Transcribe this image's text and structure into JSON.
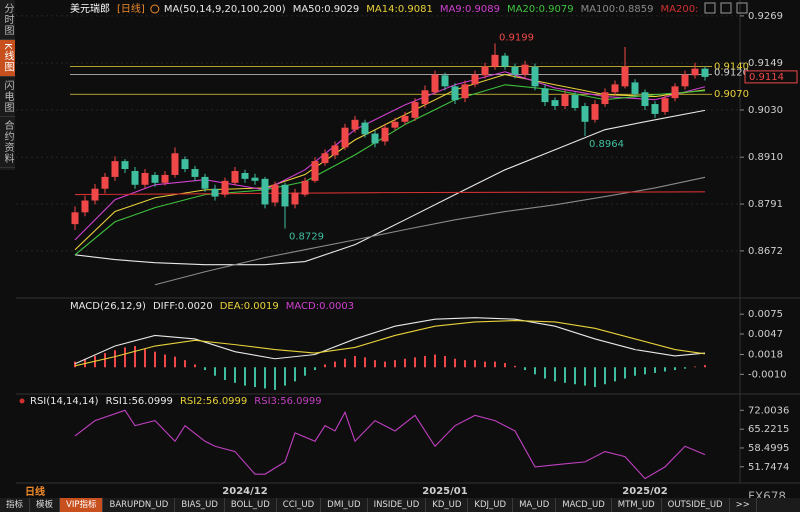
{
  "ui": {
    "sidebar_tabs": [
      "分时图",
      "K线图",
      "闪电图",
      "合约资料"
    ],
    "sidebar_active": 1,
    "period_label": "日线",
    "bottom_tabs": [
      "指标",
      "模板",
      "VIP指标",
      "BARUPDN_UD",
      "BIAS_UD",
      "BOLL_UD",
      "CCI_UD",
      "DMI_UD",
      "INSIDE_UD",
      "KD_UD",
      "KDJ_UD",
      "MA_UD",
      "MACD_UD",
      "MTM_UD",
      "OUTSIDE_UD",
      ">>"
    ],
    "bottom_active": 2,
    "watermark": "FX678"
  },
  "chart_data": [
    {
      "type": "candlestick",
      "title": "美元瑞郎",
      "period": "[日线]",
      "indicator": "MA(50,14,9,20,100,200)",
      "categories": [
        null,
        null,
        null,
        null,
        null,
        null,
        null,
        null,
        null,
        null,
        null,
        null,
        null,
        null,
        null,
        null,
        null,
        "2024/12",
        null,
        null,
        null,
        null,
        null,
        null,
        null,
        null,
        null,
        null,
        null,
        null,
        null,
        null,
        null,
        null,
        null,
        null,
        null,
        "2025/01",
        null,
        null,
        null,
        null,
        null,
        null,
        null,
        null,
        null,
        null,
        null,
        null,
        null,
        null,
        null,
        null,
        null,
        null,
        null,
        "2025/02",
        null,
        null,
        null,
        null,
        null,
        null
      ],
      "open": [
        0.874,
        0.877,
        0.88,
        0.883,
        0.886,
        0.89,
        0.8875,
        0.884,
        0.8865,
        0.8845,
        0.8865,
        0.8905,
        0.888,
        0.886,
        0.883,
        0.8815,
        0.8845,
        0.887,
        0.8858,
        0.8855,
        0.8795,
        0.884,
        0.879,
        0.8815,
        0.885,
        0.8895,
        0.8915,
        0.8935,
        0.898,
        0.8998,
        0.897,
        0.895,
        0.8985,
        0.9,
        0.901,
        0.9045,
        0.9075,
        0.9118,
        0.909,
        0.906,
        0.9095,
        0.9118,
        0.914,
        0.9168,
        0.914,
        0.912,
        0.914,
        0.9085,
        0.9055,
        0.904,
        0.9068,
        0.904,
        0.9005,
        0.9045,
        0.9075,
        0.909,
        0.91,
        0.9075,
        0.9045,
        0.9025,
        0.906,
        0.909,
        0.9118,
        0.9135
      ],
      "close": [
        0.877,
        0.88,
        0.883,
        0.886,
        0.89,
        0.888,
        0.884,
        0.887,
        0.8845,
        0.8865,
        0.892,
        0.888,
        0.886,
        0.883,
        0.881,
        0.885,
        0.8875,
        0.8855,
        0.885,
        0.879,
        0.884,
        0.8785,
        0.882,
        0.885,
        0.89,
        0.892,
        0.894,
        0.8985,
        0.9005,
        0.8968,
        0.8945,
        0.8985,
        0.9,
        0.9015,
        0.905,
        0.908,
        0.912,
        0.909,
        0.9055,
        0.9095,
        0.912,
        0.914,
        0.917,
        0.914,
        0.912,
        0.9145,
        0.909,
        0.905,
        0.904,
        0.907,
        0.9035,
        0.9,
        0.9045,
        0.9075,
        0.9095,
        0.914,
        0.907,
        0.904,
        0.902,
        0.906,
        0.909,
        0.912,
        0.9135,
        0.9114
      ],
      "high": [
        0.8785,
        0.8812,
        0.8842,
        0.887,
        0.8912,
        0.8905,
        0.8885,
        0.888,
        0.8872,
        0.8875,
        0.8935,
        0.8912,
        0.8888,
        0.8868,
        0.884,
        0.8858,
        0.8885,
        0.8878,
        0.8868,
        0.886,
        0.8848,
        0.8845,
        0.883,
        0.8858,
        0.891,
        0.893,
        0.895,
        0.8995,
        0.9015,
        0.9005,
        0.8978,
        0.8995,
        0.901,
        0.9025,
        0.906,
        0.9092,
        0.913,
        0.9125,
        0.9098,
        0.9105,
        0.913,
        0.915,
        0.9199,
        0.9175,
        0.9148,
        0.9155,
        0.9148,
        0.9095,
        0.9062,
        0.908,
        0.9075,
        0.9048,
        0.9055,
        0.9085,
        0.9105,
        0.919,
        0.9108,
        0.9082,
        0.9052,
        0.9068,
        0.9098,
        0.913,
        0.915,
        0.914
      ],
      "low": [
        0.8725,
        0.876,
        0.879,
        0.8818,
        0.885,
        0.887,
        0.883,
        0.8832,
        0.8835,
        0.8838,
        0.8858,
        0.8872,
        0.885,
        0.8822,
        0.88,
        0.8808,
        0.8838,
        0.8845,
        0.884,
        0.878,
        0.8785,
        0.8729,
        0.878,
        0.881,
        0.8845,
        0.8888,
        0.8905,
        0.8928,
        0.8972,
        0.896,
        0.8935,
        0.894,
        0.8978,
        0.8992,
        0.9002,
        0.9035,
        0.9068,
        0.908,
        0.9045,
        0.905,
        0.9088,
        0.911,
        0.9132,
        0.9132,
        0.911,
        0.9112,
        0.908,
        0.904,
        0.903,
        0.9032,
        0.9028,
        0.8964,
        0.8998,
        0.9038,
        0.9068,
        0.9085,
        0.9062,
        0.903,
        0.901,
        0.9018,
        0.9052,
        0.9082,
        0.911,
        0.9105
      ],
      "up_color": "#f04848",
      "down_color": "#3fbf9f",
      "ylim": [
        0.856,
        0.9289
      ],
      "yticks": [
        0.9269,
        0.9149,
        {
          "value": 0.903,
          "label": "0.9030"
        },
        {
          "value": 0.891,
          "label": "0.8910"
        },
        0.8791,
        0.8672
      ],
      "grid": true,
      "series": [
        {
          "name": "MA50:0.9029",
          "color": "#e8e8e8",
          "x": [
            0,
            4,
            8,
            13,
            19,
            23,
            28,
            33,
            38,
            43,
            48,
            53,
            58,
            63
          ],
          "values": [
            0.8662,
            0.865,
            0.8642,
            0.8637,
            0.8637,
            0.8645,
            0.8688,
            0.8751,
            0.8815,
            0.8878,
            0.8929,
            0.898,
            0.9005,
            0.9029
          ]
        },
        {
          "name": "MA14:0.9081",
          "color": "#e8d13a",
          "x": [
            0,
            4,
            8,
            13,
            19,
            23,
            28,
            33,
            38,
            43,
            48,
            53,
            58,
            63
          ],
          "values": [
            0.8675,
            0.8772,
            0.8807,
            0.8827,
            0.8832,
            0.8866,
            0.8954,
            0.9018,
            0.9081,
            0.912,
            0.9094,
            0.9069,
            0.9064,
            0.9081
          ]
        },
        {
          "name": "MA9:0.9089",
          "color": "#d040d0",
          "x": [
            0,
            4,
            8,
            13,
            19,
            23,
            28,
            33,
            38,
            43,
            48,
            53,
            58,
            63
          ],
          "values": [
            0.87,
            0.8802,
            0.884,
            0.8853,
            0.8827,
            0.8878,
            0.898,
            0.9043,
            0.9094,
            0.9127,
            0.9086,
            0.9064,
            0.9056,
            0.9089
          ]
        },
        {
          "name": "MA20:0.9079",
          "color": "#3ec23e",
          "x": [
            0,
            4,
            8,
            13,
            19,
            23,
            28,
            33,
            38,
            43,
            48,
            53,
            58,
            63
          ],
          "values": [
            0.8662,
            0.8746,
            0.8782,
            0.8815,
            0.8827,
            0.8848,
            0.8916,
            0.8993,
            0.9056,
            0.9094,
            0.9081,
            0.9056,
            0.9069,
            0.9079
          ]
        },
        {
          "name": "MA100:0.8859",
          "color": "#8a8a8a",
          "x": [
            8,
            13,
            19,
            23,
            28,
            33,
            38,
            43,
            48,
            53,
            58,
            63
          ],
          "values": [
            0.8586,
            0.8619,
            0.8655,
            0.8675,
            0.87,
            0.8726,
            0.8751,
            0.8772,
            0.8789,
            0.881,
            0.8832,
            0.8859
          ]
        },
        {
          "name": "MA200:",
          "color": "#d03030",
          "x": [
            0,
            30,
            63
          ],
          "values": [
            0.8815,
            0.882,
            0.8822
          ]
        }
      ],
      "hlines": [
        {
          "value": 0.914,
          "label": "0.9140",
          "color": "#e8d13a"
        },
        {
          "value": 0.912,
          "label": "0.9120",
          "color": "#cfcfcf"
        },
        {
          "value": 0.907,
          "label": "0.9070",
          "color": "#e8d13a"
        }
      ],
      "current_price": {
        "value": 0.9114,
        "label": "0.9114",
        "color": "#f04848"
      },
      "annotations": [
        {
          "x": 42,
          "value": 0.9199,
          "color": "#f04848"
        },
        {
          "x": 21,
          "value": 0.8729,
          "color": "#3fbf9f"
        },
        {
          "x": 51,
          "value": 0.8964,
          "color": "#3fbf9f"
        }
      ]
    },
    {
      "type": "macd",
      "indicator": "MACD(26,12,9)",
      "ylim": [
        -0.0035,
        0.0088
      ],
      "yticks": [
        0.0075,
        0.0047,
        0.0018,
        {
          "value": -0.001,
          "label": "-0.0010"
        }
      ],
      "histogram": [
        0.0008,
        0.0012,
        0.0016,
        0.002,
        0.0024,
        0.0028,
        0.003,
        0.0026,
        0.0022,
        0.0018,
        0.0015,
        0.001,
        0.0004,
        -0.0004,
        -0.0012,
        -0.0018,
        -0.0022,
        -0.0026,
        -0.0028,
        -0.003,
        -0.0032,
        -0.0026,
        -0.002,
        -0.0012,
        -0.0004,
        0.0004,
        0.0008,
        0.0012,
        0.0016,
        0.0014,
        0.001,
        0.0008,
        0.001,
        0.0012,
        0.0014,
        0.0016,
        0.0018,
        0.0016,
        0.0012,
        0.001,
        0.001,
        0.0008,
        0.0008,
        0.0006,
        0.0002,
        -0.0004,
        -0.001,
        -0.0016,
        -0.002,
        -0.0022,
        -0.0024,
        -0.0026,
        -0.0028,
        -0.0024,
        -0.002,
        -0.0016,
        -0.0012,
        -0.001,
        -0.0008,
        -0.0006,
        -0.0004,
        -0.0002,
        0.0001,
        0.0003
      ],
      "up_color": "#f04848",
      "down_color": "#3fbf9f",
      "series": [
        {
          "name": "DIFF:0.0020",
          "color": "#e8e8e8",
          "x": [
            0,
            4,
            8,
            12,
            16,
            20,
            24,
            28,
            32,
            36,
            40,
            44,
            48,
            52,
            56,
            60,
            63
          ],
          "values": [
            0.0005,
            0.003,
            0.0045,
            0.004,
            0.0022,
            0.0012,
            0.0018,
            0.004,
            0.0058,
            0.0068,
            0.007,
            0.0068,
            0.0058,
            0.004,
            0.0025,
            0.0016,
            0.002
          ]
        },
        {
          "name": "DEA:0.0019",
          "color": "#e8d13a",
          "x": [
            0,
            4,
            8,
            12,
            16,
            20,
            24,
            28,
            32,
            36,
            40,
            44,
            48,
            52,
            56,
            60,
            63
          ],
          "values": [
            0.0002,
            0.0015,
            0.003,
            0.0038,
            0.0032,
            0.0025,
            0.002,
            0.0028,
            0.0045,
            0.0058,
            0.0064,
            0.0066,
            0.0064,
            0.0055,
            0.004,
            0.0025,
            0.0019
          ]
        },
        {
          "name": "MACD:0.0003",
          "color": "#d040d0"
        }
      ]
    },
    {
      "type": "rsi",
      "indicator": "RSI(14,14,14)",
      "ylim": [
        47,
        75.7
      ],
      "yticks": [
        72.0036,
        65.2215,
        58.4995,
        51.7474
      ],
      "series": [
        {
          "name": "RSI1:56.0999",
          "color": "#e8e8e8"
        },
        {
          "name": "RSI2:56.0999",
          "color": "#e8d13a"
        },
        {
          "name": "RSI3:56.0999",
          "color": "#c040c0",
          "x": [
            0,
            2,
            5,
            6,
            8,
            10,
            11,
            13,
            14,
            16,
            18,
            19,
            21,
            22,
            24,
            25,
            26,
            27,
            28,
            30,
            32,
            34,
            36,
            38,
            40,
            42,
            44,
            46,
            49,
            51,
            53,
            55,
            57,
            59,
            61,
            63
          ],
          "values": [
            62.8,
            68.3,
            72.0,
            66.5,
            68.3,
            60.9,
            66.5,
            60.9,
            59.1,
            57.2,
            49.1,
            49.1,
            53.5,
            63.9,
            60.9,
            66.5,
            64.6,
            71.3,
            60.9,
            68.3,
            64.6,
            70.2,
            59.1,
            66.5,
            70.2,
            68.3,
            64.6,
            51.7,
            52.8,
            53.5,
            57.2,
            55.4,
            47.5,
            51.7,
            59.1,
            56.1
          ]
        }
      ]
    }
  ]
}
